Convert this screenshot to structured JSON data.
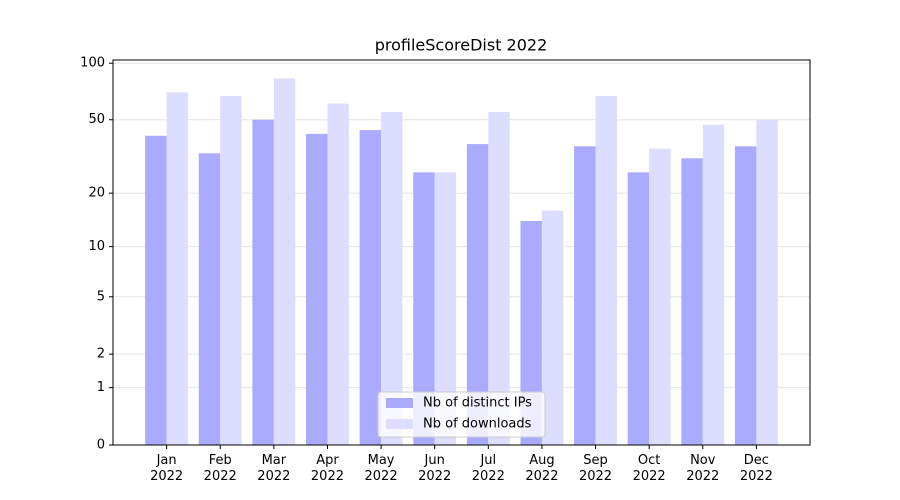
{
  "chart_data": {
    "type": "bar",
    "title": "profileScoreDist 2022",
    "categories": [
      "Jan\n2022",
      "Feb\n2022",
      "Mar\n2022",
      "Apr\n2022",
      "May\n2022",
      "Jun\n2022",
      "Jul\n2022",
      "Aug\n2022",
      "Sep\n2022",
      "Oct\n2022",
      "Nov\n2022",
      "Dec\n2022"
    ],
    "series": [
      {
        "name": "Nb of distinct IPs",
        "color": "#aaaaff",
        "values": [
          41,
          33,
          50,
          42,
          44,
          26,
          37,
          14,
          36,
          26,
          31,
          36
        ]
      },
      {
        "name": "Nb of downloads",
        "color": "#ddddff",
        "values": [
          70,
          67,
          83,
          61,
          55,
          26,
          55,
          16,
          67,
          35,
          47,
          50
        ]
      }
    ],
    "yscale": "log1p",
    "ylim": [
      0,
      104
    ],
    "yticks": [
      0,
      1,
      2,
      5,
      10,
      20,
      50,
      100
    ],
    "grid": true,
    "legend": "bottom"
  }
}
